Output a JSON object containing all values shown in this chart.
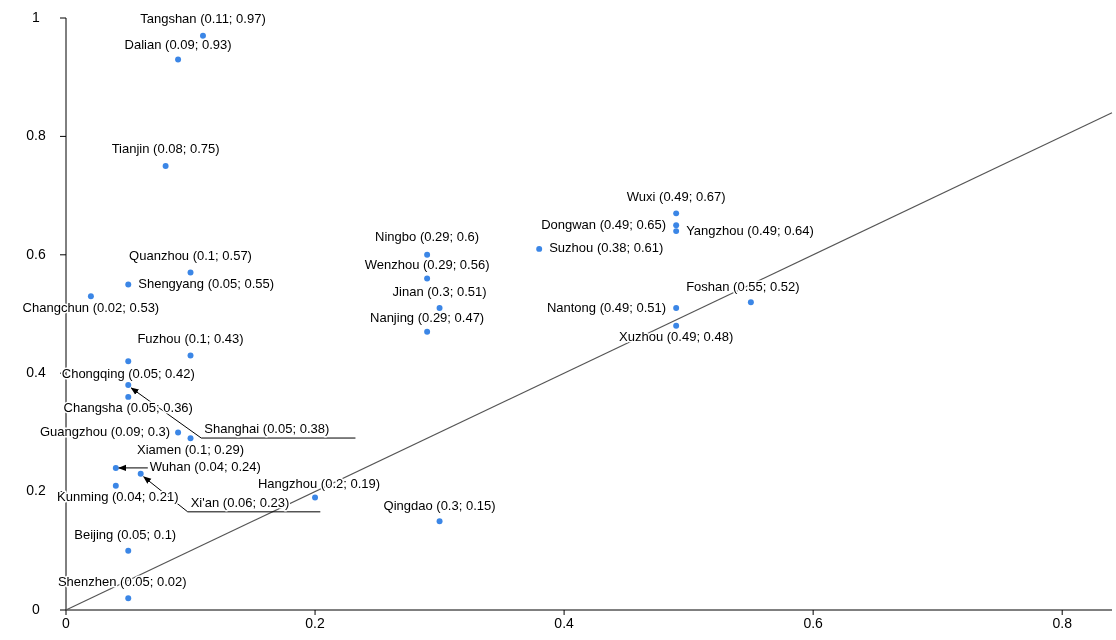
{
  "chart_data": {
    "type": "scatter",
    "xlim": [
      0,
      0.84
    ],
    "ylim": [
      0,
      1
    ],
    "xticks": [
      0,
      0.2,
      0.4,
      0.6,
      0.8
    ],
    "yticks": [
      0,
      0.2,
      0.4,
      0.6,
      0.8,
      1
    ],
    "grid": false,
    "marker": "circle",
    "series": [
      {
        "color": "#3b86e6",
        "x": [
          0.11,
          0.09,
          0.08,
          0.1,
          0.05,
          0.02,
          0.1,
          0.05,
          0.05,
          0.05,
          0.09,
          0.1,
          0.04,
          0.06,
          0.04,
          0.2,
          0.05,
          0.05,
          0.3,
          0.29,
          0.29,
          0.3,
          0.29,
          0.38,
          0.49,
          0.49,
          0.49,
          0.49,
          0.49,
          0.55
        ],
        "values": [
          0.97,
          0.93,
          0.75,
          0.57,
          0.55,
          0.53,
          0.43,
          0.42,
          0.38,
          0.36,
          0.3,
          0.29,
          0.24,
          0.23,
          0.21,
          0.19,
          0.1,
          0.02,
          0.15,
          0.6,
          0.56,
          0.51,
          0.47,
          0.61,
          0.67,
          0.65,
          0.64,
          0.51,
          0.48,
          0.52
        ]
      },
      {
        "type": "line",
        "marker": "none",
        "color": "#555555",
        "x": [
          0,
          0.84
        ],
        "values": [
          0,
          0.84
        ]
      }
    ],
    "annotations": [
      {
        "text": "Tangshan (0.11; 0.97)",
        "x": 0.11,
        "y": 0.97
      },
      {
        "text": "Dalian (0.09; 0.93)",
        "x": 0.09,
        "y": 0.93
      },
      {
        "text": "Tianjin (0.08; 0.75)",
        "x": 0.08,
        "y": 0.75
      },
      {
        "text": "Quanzhou (0.1; 0.57)",
        "x": 0.1,
        "y": 0.57
      },
      {
        "text": "Shengyang (0.05; 0.55)",
        "x": 0.05,
        "y": 0.55
      },
      {
        "text": "Changchun (0.02; 0.53)",
        "x": 0.02,
        "y": 0.53
      },
      {
        "text": "Fuzhou (0.1; 0.43)",
        "x": 0.1,
        "y": 0.43
      },
      {
        "text": "Chongqing (0.05; 0.42)",
        "x": 0.05,
        "y": 0.42
      },
      {
        "text": "Shanghai (0.05; 0.38)",
        "x": 0.05,
        "y": 0.38
      },
      {
        "text": "Changsha (0.05; 0.36)",
        "x": 0.05,
        "y": 0.36
      },
      {
        "text": "Guangzhou (0.09; 0.3)",
        "x": 0.09,
        "y": 0.3
      },
      {
        "text": "Xiamen (0.1; 0.29)",
        "x": 0.1,
        "y": 0.29
      },
      {
        "text": "Wuhan (0.04; 0.24)",
        "x": 0.04,
        "y": 0.24
      },
      {
        "text": "Xi'an (0.06; 0.23)",
        "x": 0.06,
        "y": 0.23
      },
      {
        "text": "Kunming (0.04; 0.21)",
        "x": 0.04,
        "y": 0.21
      },
      {
        "text": "Hangzhou (0.2; 0.19)",
        "x": 0.2,
        "y": 0.19
      },
      {
        "text": "Beijing (0.05; 0.1)",
        "x": 0.05,
        "y": 0.1
      },
      {
        "text": "Shenzhen (0.05; 0.02)",
        "x": 0.05,
        "y": 0.02
      },
      {
        "text": "Qingdao (0.3; 0.15)",
        "x": 0.3,
        "y": 0.15
      },
      {
        "text": "Ningbo (0.29; 0.6)",
        "x": 0.29,
        "y": 0.6
      },
      {
        "text": "Wenzhou (0.29; 0.56)",
        "x": 0.29,
        "y": 0.56
      },
      {
        "text": "Jinan (0.3; 0.51)",
        "x": 0.3,
        "y": 0.51
      },
      {
        "text": "Nanjing (0.29; 0.47)",
        "x": 0.29,
        "y": 0.47
      },
      {
        "text": "Suzhou (0.38; 0.61)",
        "x": 0.38,
        "y": 0.61
      },
      {
        "text": "Wuxi (0.49; 0.67)",
        "x": 0.49,
        "y": 0.67
      },
      {
        "text": "Dongwan (0.49; 0.65)",
        "x": 0.49,
        "y": 0.65
      },
      {
        "text": "Yangzhou (0.49; 0.64)",
        "x": 0.49,
        "y": 0.64
      },
      {
        "text": "Nantong (0.49; 0.51)",
        "x": 0.49,
        "y": 0.51
      },
      {
        "text": "Xuzhou (0.49; 0.48)",
        "x": 0.49,
        "y": 0.48
      },
      {
        "text": "Foshan (0.55; 0.52)",
        "x": 0.55,
        "y": 0.52
      }
    ]
  }
}
